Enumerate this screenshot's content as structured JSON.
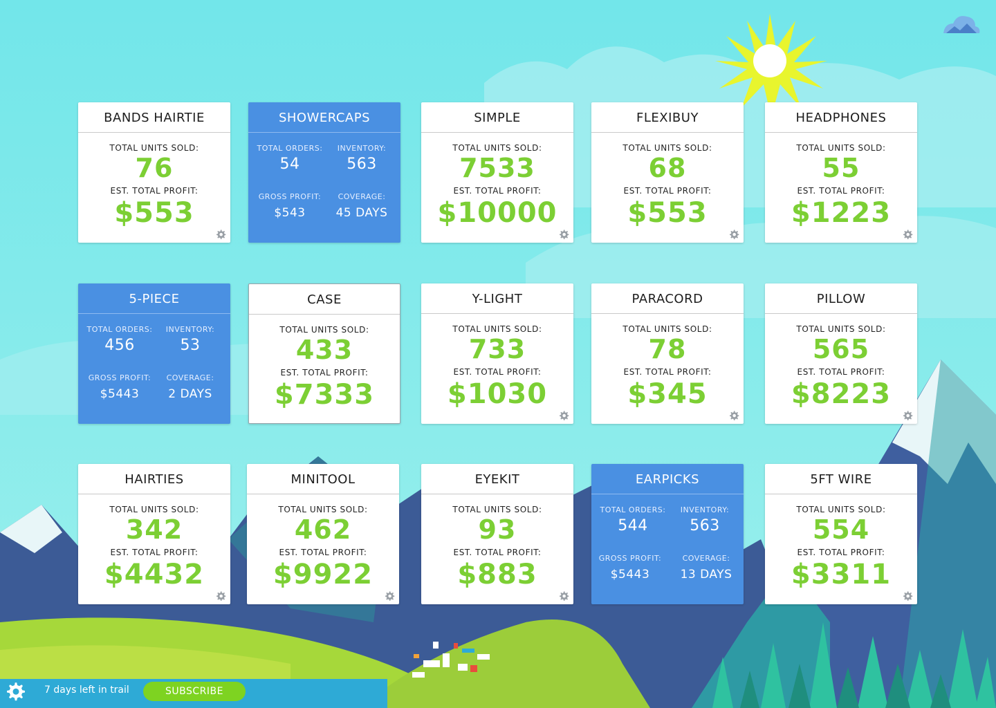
{
  "colors": {
    "sky": "#7ee8ea",
    "accent_green": "#7ccf34",
    "card_blue": "#4a90e2",
    "subscribe_green": "#7ed321"
  },
  "cards": [
    {
      "title": "BANDS HAIRTIE",
      "label1": "TOTAL UNITS SOLD:",
      "value1": "76",
      "label2": "EST. TOTAL PROFIT:",
      "value2": "$553"
    },
    {
      "title": "SHOWERCAPS",
      "k1": "TOTAL ORDERS:",
      "v1": "54",
      "k2": "INVENTORY:",
      "v2": "563",
      "k3": "GROSS PROFIT:",
      "v3": "$543",
      "k4": "COVERAGE:",
      "v4": "45 DAYS"
    },
    {
      "title": "SIMPLE",
      "label1": "TOTAL UNITS SOLD:",
      "value1": "7533",
      "label2": "EST. TOTAL PROFIT:",
      "value2": "$10000"
    },
    {
      "title": "FLEXIBUY",
      "label1": "TOTAL UNITS SOLD:",
      "value1": "68",
      "label2": "EST. TOTAL PROFIT:",
      "value2": "$553"
    },
    {
      "title": "HEADPHONES",
      "label1": "TOTAL UNITS SOLD:",
      "value1": "55",
      "label2": "EST. TOTAL PROFIT:",
      "value2": "$1223"
    },
    {
      "title": "5-PIECE",
      "k1": "TOTAL ORDERS:",
      "v1": "456",
      "k2": "INVENTORY:",
      "v2": "53",
      "k3": "GROSS PROFIT:",
      "v3": "$5443",
      "k4": "COVERAGE:",
      "v4": "2 DAYS"
    },
    {
      "title": "CASE",
      "label1": "TOTAL UNITS SOLD:",
      "value1": "433",
      "label2": "EST. TOTAL PROFIT:",
      "value2": "$7333"
    },
    {
      "title": "Y-LIGHT",
      "label1": "TOTAL UNITS SOLD:",
      "value1": "733",
      "label2": "EST. TOTAL PROFIT:",
      "value2": "$1030"
    },
    {
      "title": "PARACORD",
      "label1": "TOTAL UNITS SOLD:",
      "value1": "78",
      "label2": "EST. TOTAL PROFIT:",
      "value2": "$345"
    },
    {
      "title": "PILLOW",
      "label1": "TOTAL UNITS SOLD:",
      "value1": "565",
      "label2": "EST. TOTAL PROFIT:",
      "value2": "$8223"
    },
    {
      "title": "HAIRTIES",
      "label1": "TOTAL UNITS SOLD:",
      "value1": "342",
      "label2": "EST. TOTAL PROFIT:",
      "value2": "$4432"
    },
    {
      "title": "MINITOOL",
      "label1": "TOTAL UNITS SOLD:",
      "value1": "462",
      "label2": "EST. TOTAL PROFIT:",
      "value2": "$9922"
    },
    {
      "title": "EYEKIT",
      "label1": "TOTAL UNITS SOLD:",
      "value1": "93",
      "label2": "EST. TOTAL PROFIT:",
      "value2": "$883"
    },
    {
      "title": "EARPICKS",
      "k1": "TOTAL ORDERS:",
      "v1": "544",
      "k2": "INVENTORY:",
      "v2": "563",
      "k3": "GROSS PROFIT:",
      "v3": "$5443",
      "k4": "COVERAGE:",
      "v4": "13 DAYS"
    },
    {
      "title": "5FT WIRE",
      "label1": "TOTAL UNITS SOLD:",
      "value1": "554",
      "label2": "EST. TOTAL PROFIT:",
      "value2": "$3311"
    }
  ],
  "footer": {
    "trial_text": "7 days left in trail",
    "subscribe_label": "SUBSCRIBE",
    "settings_icon": "gear-icon"
  },
  "icons": {
    "card_settings": "gear-icon",
    "weather": "cloud-icon"
  }
}
